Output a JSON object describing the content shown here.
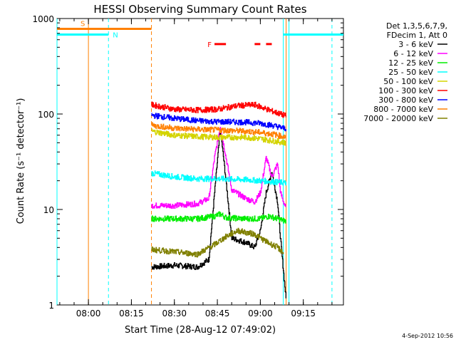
{
  "chart_data": {
    "type": "line",
    "title": "HESSI Observing Summary Count Rates",
    "xlabel": "Start Time (28-Aug-12 07:49:02)",
    "ylabel": "Count Rate (s⁻¹ detector⁻¹)",
    "yscale": "log",
    "xlim": [
      "07:49:02",
      "09:29:00"
    ],
    "ylim": [
      1,
      1000
    ],
    "x_ticks": [
      "08:00",
      "08:15",
      "08:30",
      "08:45",
      "09:00",
      "09:15"
    ],
    "y_ticks": [
      "1",
      "10",
      "100",
      "1000"
    ],
    "legend_header": [
      "Det 1,3,5,6,7,9,",
      "FDecim 1, Att 0"
    ],
    "legend_position": "right",
    "grid": false,
    "series": [
      {
        "name": "3 - 6 keV",
        "color": "#000000",
        "x": [
          "08:22",
          "08:30",
          "08:38",
          "08:42",
          "08:44",
          "08:46",
          "08:48",
          "08:50",
          "08:55",
          "08:58",
          "09:00",
          "09:02",
          "09:04",
          "09:06",
          "09:07",
          "09:09"
        ],
        "values": [
          2.5,
          2.6,
          2.5,
          3.0,
          15,
          70,
          20,
          5,
          4.5,
          4,
          6,
          15,
          25,
          12,
          5,
          1.1
        ]
      },
      {
        "name": "6 - 12 keV",
        "color": "#ff00ff",
        "x": [
          "08:22",
          "08:30",
          "08:38",
          "08:42",
          "08:44",
          "08:46",
          "08:48",
          "08:50",
          "08:55",
          "08:58",
          "09:00",
          "09:02",
          "09:04",
          "09:06",
          "09:07",
          "09:09"
        ],
        "values": [
          11,
          11,
          11.5,
          13,
          35,
          75,
          35,
          16,
          13,
          12,
          15,
          35,
          22,
          30,
          15,
          10
        ]
      },
      {
        "name": "12 - 25 keV",
        "color": "#00ee00",
        "x": [
          "08:22",
          "08:30",
          "08:38",
          "08:44",
          "08:46",
          "08:48",
          "08:55",
          "09:00",
          "09:03",
          "09:06",
          "09:09"
        ],
        "values": [
          8,
          8,
          8,
          8.5,
          9,
          8.2,
          8,
          8,
          8.5,
          8,
          7.5
        ]
      },
      {
        "name": "25 - 50 keV",
        "color": "#00ffff",
        "x": [
          "08:22",
          "08:30",
          "08:38",
          "08:45",
          "08:55",
          "09:00",
          "09:09"
        ],
        "values": [
          24,
          22,
          21,
          21,
          20.5,
          20,
          19
        ]
      },
      {
        "name": "50 - 100 keV",
        "color": "#d4d400",
        "x": [
          "08:22",
          "08:30",
          "08:38",
          "08:45",
          "08:55",
          "09:00",
          "09:05",
          "09:09"
        ],
        "values": [
          66,
          60,
          58,
          57,
          57,
          55,
          52,
          50
        ]
      },
      {
        "name": "100 - 300 keV",
        "color": "#ff0000",
        "x": [
          "08:22",
          "08:30",
          "08:38",
          "08:45",
          "08:52",
          "08:58",
          "09:03",
          "09:09"
        ],
        "values": [
          125,
          112,
          110,
          112,
          122,
          125,
          110,
          95
        ]
      },
      {
        "name": "300 - 800 keV",
        "color": "#0000ff",
        "x": [
          "08:22",
          "08:30",
          "08:38",
          "08:45",
          "08:55",
          "09:00",
          "09:05",
          "09:09"
        ],
        "values": [
          97,
          90,
          85,
          83,
          82,
          80,
          75,
          70
        ]
      },
      {
        "name": "800 - 7000 keV",
        "color": "#ff8000",
        "x": [
          "08:22",
          "08:30",
          "08:38",
          "08:45",
          "08:55",
          "09:00",
          "09:05",
          "09:09"
        ],
        "values": [
          76,
          71,
          69,
          68,
          66,
          64,
          61,
          57
        ]
      },
      {
        "name": "7000 - 20000 keV",
        "color": "#808000",
        "x": [
          "08:22",
          "08:30",
          "08:38",
          "08:44",
          "08:48",
          "08:52",
          "08:58",
          "09:02",
          "09:06",
          "09:08"
        ],
        "values": [
          3.8,
          3.6,
          3.4,
          4.3,
          5.2,
          6.0,
          5.5,
          4.6,
          4.0,
          3.5
        ]
      }
    ],
    "annotations": [
      {
        "label": "S",
        "color": "#ff8000",
        "x_start": "07:49:02",
        "x_end": "08:22",
        "y": 780
      },
      {
        "label": "N",
        "color": "#00ffff",
        "x_start": "07:49:02",
        "x_end": "08:07",
        "y": 680
      },
      {
        "label": "N",
        "color": "#00ffff",
        "x_start": "09:08",
        "x_end": "09:29:00",
        "y": 680
      },
      {
        "label": "F",
        "color": "#ff0000",
        "segments": [
          [
            "08:44",
            "08:48"
          ],
          [
            "08:58",
            "09:00"
          ],
          [
            "09:02",
            "09:04"
          ]
        ],
        "y": 540
      }
    ],
    "vertical_markers": [
      {
        "x": "07:49:02",
        "color": "#00ffff",
        "style": "solid"
      },
      {
        "x": "08:00",
        "color": "#ff8000",
        "style": "solid"
      },
      {
        "x": "08:07",
        "color": "#00ffff",
        "style": "dashed"
      },
      {
        "x": "08:22",
        "color": "#ff8000",
        "style": "dashed"
      },
      {
        "x": "09:08",
        "color": "#00ffff",
        "style": "solid"
      },
      {
        "x": "09:09",
        "color": "#ff8000",
        "style": "solid"
      },
      {
        "x": "09:10",
        "color": "#00ffff",
        "style": "solid"
      },
      {
        "x": "09:25",
        "color": "#00ffff",
        "style": "dashed"
      }
    ]
  },
  "footer": {
    "date_stamp": "4-Sep-2012 10:56"
  }
}
